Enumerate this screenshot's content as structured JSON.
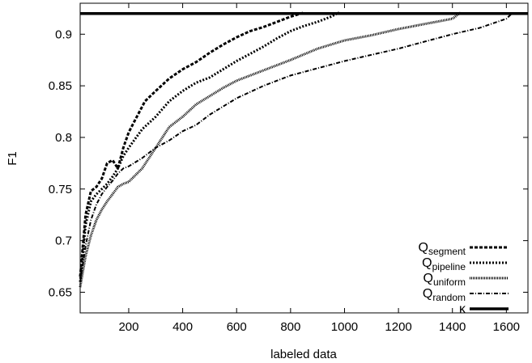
{
  "chart_data": {
    "type": "line",
    "xlabel": "labeled data",
    "ylabel": "F1",
    "xlim": [
      20,
      1680
    ],
    "ylim": [
      0.63,
      0.93
    ],
    "x_ticks": [
      200,
      400,
      600,
      800,
      1000,
      1200,
      1400,
      1600
    ],
    "x_tick_labels": [
      "200",
      "400",
      "600",
      "800",
      "1000",
      "1200",
      "1400",
      "1600"
    ],
    "y_ticks": [
      0.65,
      0.7,
      0.75,
      0.8,
      0.85,
      0.9
    ],
    "y_tick_labels": [
      "0.65",
      "0.7",
      "0.75",
      "0.8",
      "0.85",
      "0.9"
    ],
    "grid": false,
    "legend_position": "bottom-right",
    "series": [
      {
        "name": "Q",
        "subscript": "segment",
        "style": "dashed-thick",
        "x": [
          20,
          40,
          60,
          80,
          100,
          120,
          140,
          160,
          180,
          200,
          220,
          240,
          260,
          280,
          300,
          350,
          400,
          450,
          500,
          550,
          600,
          650,
          700,
          750,
          800,
          850
        ],
        "y": [
          0.665,
          0.725,
          0.748,
          0.752,
          0.76,
          0.775,
          0.778,
          0.77,
          0.79,
          0.805,
          0.815,
          0.825,
          0.835,
          0.84,
          0.845,
          0.857,
          0.866,
          0.873,
          0.882,
          0.89,
          0.897,
          0.903,
          0.907,
          0.912,
          0.917,
          0.921
        ]
      },
      {
        "name": "Q",
        "subscript": "pipeline",
        "style": "dotted-thick",
        "x": [
          20,
          40,
          60,
          80,
          100,
          120,
          140,
          160,
          180,
          200,
          250,
          300,
          350,
          400,
          450,
          500,
          550,
          600,
          650,
          700,
          750,
          800,
          850,
          900,
          950,
          980
        ],
        "y": [
          0.66,
          0.715,
          0.738,
          0.745,
          0.75,
          0.755,
          0.762,
          0.77,
          0.782,
          0.79,
          0.808,
          0.82,
          0.835,
          0.845,
          0.853,
          0.858,
          0.866,
          0.874,
          0.881,
          0.888,
          0.896,
          0.903,
          0.908,
          0.912,
          0.917,
          0.921
        ]
      },
      {
        "name": "Q",
        "subscript": "uniform",
        "style": "fine-dotted",
        "x": [
          20,
          40,
          60,
          80,
          100,
          120,
          140,
          160,
          180,
          200,
          250,
          300,
          350,
          400,
          450,
          500,
          550,
          600,
          700,
          800,
          900,
          1000,
          1100,
          1200,
          1300,
          1400,
          1430
        ],
        "y": [
          0.655,
          0.685,
          0.705,
          0.72,
          0.73,
          0.738,
          0.745,
          0.752,
          0.755,
          0.757,
          0.77,
          0.79,
          0.81,
          0.82,
          0.832,
          0.84,
          0.848,
          0.855,
          0.865,
          0.875,
          0.886,
          0.894,
          0.899,
          0.905,
          0.91,
          0.915,
          0.921
        ]
      },
      {
        "name": "Q",
        "subscript": "random",
        "style": "dash-dot",
        "x": [
          20,
          40,
          60,
          80,
          100,
          120,
          140,
          160,
          180,
          200,
          250,
          300,
          350,
          400,
          450,
          500,
          600,
          700,
          800,
          900,
          1000,
          1100,
          1200,
          1300,
          1400,
          1500,
          1600,
          1620
        ],
        "y": [
          0.66,
          0.695,
          0.72,
          0.735,
          0.745,
          0.752,
          0.758,
          0.765,
          0.77,
          0.772,
          0.78,
          0.79,
          0.797,
          0.806,
          0.812,
          0.822,
          0.838,
          0.85,
          0.86,
          0.867,
          0.874,
          0.88,
          0.886,
          0.893,
          0.9,
          0.906,
          0.915,
          0.92
        ]
      },
      {
        "name": "κ",
        "style": "solid-thick",
        "x": [
          20,
          1680
        ],
        "y": [
          0.92,
          0.92
        ]
      }
    ]
  }
}
